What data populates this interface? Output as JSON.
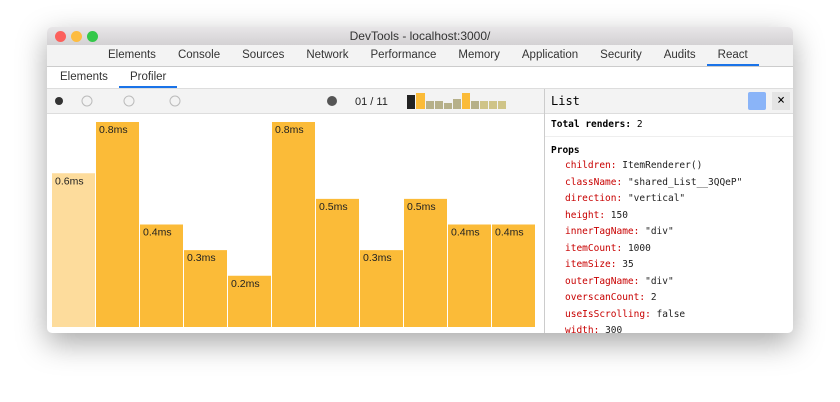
{
  "window": {
    "title": "DevTools - localhost:3000/"
  },
  "tabs": [
    "Elements",
    "Console",
    "Sources",
    "Network",
    "Performance",
    "Memory",
    "Application",
    "Security",
    "Audits",
    "React"
  ],
  "active_tab": "React",
  "subtabs": [
    "Elements",
    "Profiler"
  ],
  "active_subtab": "Profiler",
  "commit_counter": "01 / 11",
  "chart_data": {
    "type": "bar",
    "values": [
      0.6,
      0.8,
      0.4,
      0.3,
      0.2,
      0.8,
      0.5,
      0.3,
      0.5,
      0.4,
      0.4
    ],
    "value_labels": [
      "0.6ms",
      "0.8ms",
      "0.4ms",
      "0.3ms",
      "0.2ms",
      "0.8ms",
      "0.5ms",
      "0.3ms",
      "0.5ms",
      "0.4ms",
      "0.4ms"
    ],
    "colors": [
      "#fddc9c",
      "#fbbb38",
      "#fbbb38",
      "#fbbb38",
      "#fbbb38",
      "#fbbb38",
      "#fbbb38",
      "#fbbb38",
      "#fbbb38",
      "#fbbb38",
      "#fbbb38"
    ],
    "ylim": [
      0,
      0.8
    ]
  },
  "panel": {
    "title": "List",
    "total_label": "Total renders:",
    "total": 2,
    "props_title": "Props",
    "props": [
      {
        "name": "children:",
        "value": "ItemRenderer()"
      },
      {
        "name": "className:",
        "value": "\"shared_List__3QQeP\""
      },
      {
        "name": "direction:",
        "value": "\"vertical\""
      },
      {
        "name": "height:",
        "value": "150"
      },
      {
        "name": "innerTagName:",
        "value": "\"div\""
      },
      {
        "name": "itemCount:",
        "value": "1000"
      },
      {
        "name": "itemSize:",
        "value": "35"
      },
      {
        "name": "outerTagName:",
        "value": "\"div\""
      },
      {
        "name": "overscanCount:",
        "value": "2"
      },
      {
        "name": "useIsScrolling:",
        "value": "false"
      },
      {
        "name": "width:",
        "value": "300"
      }
    ]
  }
}
